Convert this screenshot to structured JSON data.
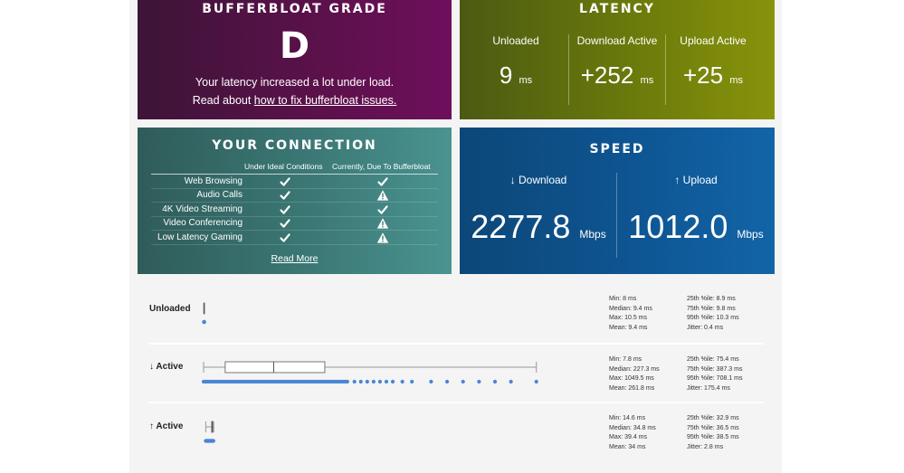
{
  "grade": {
    "title": "BUFFERBLOAT GRADE",
    "letter": "D",
    "description": "Your latency increased a lot under load.",
    "read_prefix": "Read about ",
    "read_link": "how to fix bufferbloat issues."
  },
  "latency": {
    "title": "LATENCY",
    "unloaded_label": "Unloaded",
    "unloaded_value": "9",
    "download_label": "Download Active",
    "download_value": "+252",
    "upload_label": "Upload Active",
    "upload_value": "+25",
    "unit": "ms"
  },
  "connection": {
    "title": "YOUR CONNECTION",
    "col1": "Under Ideal Conditions",
    "col2": "Currently, Due To Bufferbloat",
    "rows": [
      {
        "label": "Web Browsing",
        "ideal": "check",
        "current": "check"
      },
      {
        "label": "Audio Calls",
        "ideal": "check",
        "current": "warning"
      },
      {
        "label": "4K Video Streaming",
        "ideal": "check",
        "current": "check"
      },
      {
        "label": "Video Conferencing",
        "ideal": "check",
        "current": "warning"
      },
      {
        "label": "Low Latency Gaming",
        "ideal": "check",
        "current": "warning"
      }
    ],
    "read_more": "Read More"
  },
  "speed": {
    "title": "SPEED",
    "download_label": "↓ Download",
    "download_value": "2277.8",
    "upload_label": "↑ Upload",
    "upload_value": "1012.0",
    "unit": "Mbps"
  },
  "details": {
    "unloaded": {
      "label": "Unloaded",
      "stats_left": [
        "Min: 8 ms",
        "Median: 9.4 ms",
        "Max: 10.5 ms",
        "Mean: 9.4 ms"
      ],
      "stats_right": [
        "25th %ile: 8.9 ms",
        "75th %ile: 9.8 ms",
        "95th %ile: 10.3 ms",
        "Jitter: 0.4 ms"
      ],
      "box": {
        "min": 8,
        "q1": 8.9,
        "median": 9.4,
        "q3": 9.8,
        "max": 10.5
      }
    },
    "download": {
      "label": "↓ Active",
      "stats_left": [
        "Min: 7.8 ms",
        "Median: 227.3 ms",
        "Max: 1049.5 ms",
        "Mean: 261.8 ms"
      ],
      "stats_right": [
        "25th %ile: 75.4 ms",
        "75th %ile: 387.3 ms",
        "95th %ile: 708.1 ms",
        "Jitter: 175.4 ms"
      ],
      "box": {
        "min": 7.8,
        "q1": 75.4,
        "median": 227.3,
        "q3": 387.3,
        "max": 1049.5
      }
    },
    "upload": {
      "label": "↑ Active",
      "stats_left": [
        "Min: 14.6 ms",
        "Median: 34.8 ms",
        "Max: 39.4 ms",
        "Mean: 34 ms"
      ],
      "stats_right": [
        "25th %ile: 32.9 ms",
        "75th %ile: 36.5 ms",
        "95th %ile: 38.5 ms",
        "Jitter: 2.8 ms"
      ],
      "box": {
        "min": 14.6,
        "q1": 32.9,
        "median": 34.8,
        "q3": 36.5,
        "max": 39.4
      }
    }
  },
  "colors": {
    "grade_bg": "#5a1149",
    "latency_bg": "#6b7a0b",
    "connection_bg": "#3b7875",
    "speed_bg": "#0e5592",
    "sample_dot": "#4a86d4"
  }
}
